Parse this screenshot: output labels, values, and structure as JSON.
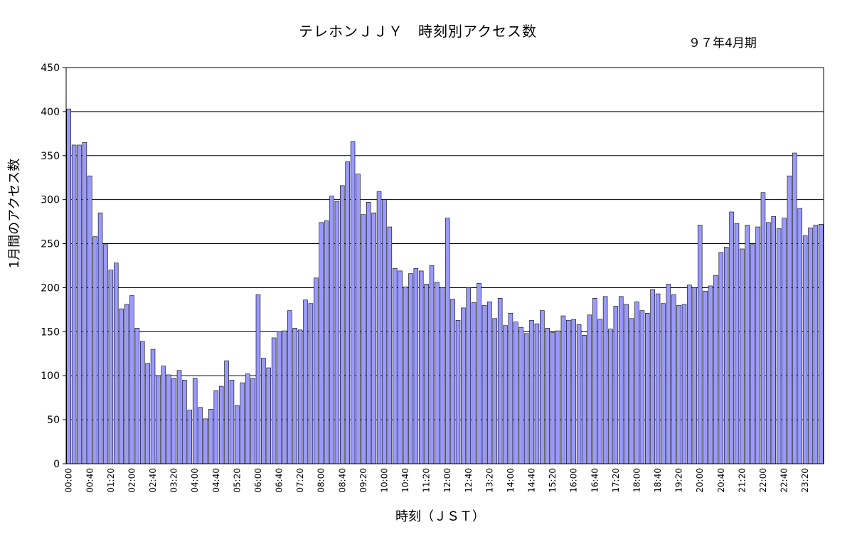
{
  "chart_data": {
    "type": "bar",
    "title": "テレホンＪＪＹ　時刻別アクセス数",
    "subtitle": "９７年4月期",
    "xlabel": "時刻（ＪＳＴ）",
    "ylabel": "1月間のアクセス数",
    "ylim": [
      0,
      450
    ],
    "yticks": [
      0,
      50,
      100,
      150,
      200,
      250,
      300,
      350,
      400,
      450
    ],
    "grid": true,
    "bar_color": "#9999ff",
    "x": [
      "00:00",
      "00:10",
      "00:20",
      "00:30",
      "00:40",
      "00:50",
      "01:00",
      "01:10",
      "01:20",
      "01:30",
      "01:40",
      "01:50",
      "02:00",
      "02:10",
      "02:20",
      "02:30",
      "02:40",
      "02:50",
      "03:00",
      "03:10",
      "03:20",
      "03:30",
      "03:40",
      "03:50",
      "04:00",
      "04:10",
      "04:20",
      "04:30",
      "04:40",
      "04:50",
      "05:00",
      "05:10",
      "05:20",
      "05:30",
      "05:40",
      "05:50",
      "06:00",
      "06:10",
      "06:20",
      "06:30",
      "06:40",
      "06:50",
      "07:00",
      "07:10",
      "07:20",
      "07:30",
      "07:40",
      "07:50",
      "08:00",
      "08:10",
      "08:20",
      "08:30",
      "08:40",
      "08:50",
      "09:00",
      "09:10",
      "09:20",
      "09:30",
      "09:40",
      "09:50",
      "10:00",
      "10:10",
      "10:20",
      "10:30",
      "10:40",
      "10:50",
      "11:00",
      "11:10",
      "11:20",
      "11:30",
      "11:40",
      "11:50",
      "12:00",
      "12:10",
      "12:20",
      "12:30",
      "12:40",
      "12:50",
      "13:00",
      "13:10",
      "13:20",
      "13:30",
      "13:40",
      "13:50",
      "14:00",
      "14:10",
      "14:20",
      "14:30",
      "14:40",
      "14:50",
      "15:00",
      "15:10",
      "15:20",
      "15:30",
      "15:40",
      "15:50",
      "16:00",
      "16:10",
      "16:20",
      "16:30",
      "16:40",
      "16:50",
      "17:00",
      "17:10",
      "17:20",
      "17:30",
      "17:40",
      "17:50",
      "18:00",
      "18:10",
      "18:20",
      "18:30",
      "18:40",
      "18:50",
      "19:00",
      "19:10",
      "19:20",
      "19:30",
      "19:40",
      "19:50",
      "20:00",
      "20:10",
      "20:20",
      "20:30",
      "20:40",
      "20:50",
      "21:00",
      "21:10",
      "21:20",
      "21:30",
      "21:40",
      "21:50",
      "22:00",
      "22:10",
      "22:20",
      "22:30",
      "22:40",
      "22:50",
      "23:00",
      "23:10",
      "23:20",
      "23:30",
      "23:40",
      "23:50"
    ],
    "xtick_labels": [
      "00:00",
      "00:40",
      "01:20",
      "02:00",
      "02:40",
      "03:20",
      "04:00",
      "04:40",
      "05:20",
      "06:00",
      "06:40",
      "07:20",
      "08:00",
      "08:40",
      "09:20",
      "10:00",
      "10:40",
      "11:20",
      "12:00",
      "12:40",
      "13:20",
      "14:00",
      "14:40",
      "15:20",
      "16:00",
      "16:40",
      "17:20",
      "18:00",
      "18:40",
      "19:20",
      "20:00",
      "20:40",
      "21:20",
      "22:00",
      "22:40",
      "23:20"
    ],
    "xtick_every": 4,
    "values": [
      403,
      362,
      362,
      365,
      327,
      258,
      285,
      249,
      220,
      228,
      176,
      181,
      191,
      154,
      139,
      114,
      130,
      100,
      111,
      101,
      97,
      106,
      95,
      61,
      97,
      64,
      51,
      62,
      83,
      88,
      117,
      95,
      66,
      92,
      102,
      97,
      192,
      120,
      109,
      143,
      150,
      151,
      174,
      154,
      152,
      186,
      182,
      211,
      274,
      276,
      304,
      298,
      316,
      343,
      366,
      329,
      283,
      297,
      285,
      309,
      300,
      269,
      222,
      219,
      201,
      216,
      222,
      219,
      204,
      225,
      206,
      200,
      279,
      187,
      163,
      177,
      200,
      183,
      205,
      180,
      184,
      165,
      188,
      157,
      171,
      161,
      155,
      148,
      163,
      159,
      174,
      154,
      149,
      151,
      168,
      163,
      164,
      158,
      146,
      169,
      188,
      164,
      190,
      153,
      179,
      190,
      181,
      165,
      184,
      174,
      171,
      198,
      193,
      182,
      204,
      192,
      180,
      181,
      203,
      200,
      271,
      196,
      202,
      214,
      240,
      246,
      286,
      273,
      244,
      271,
      249,
      269,
      308,
      274,
      281,
      267,
      279,
      327,
      353,
      290,
      259,
      268,
      271,
      272
    ]
  }
}
